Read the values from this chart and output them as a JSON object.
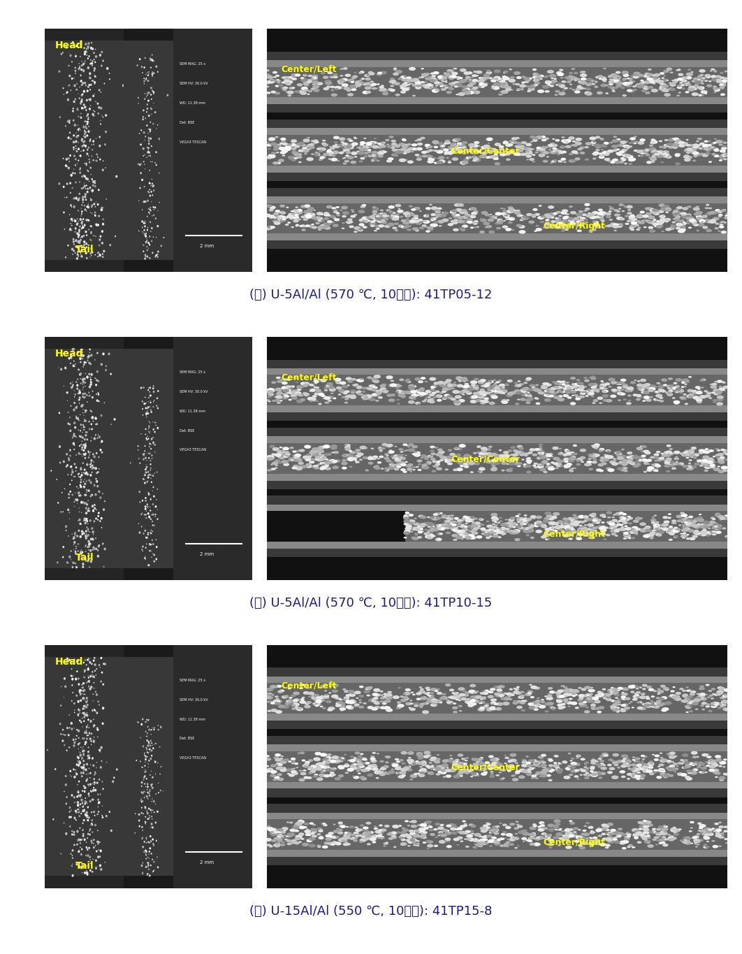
{
  "background_color": "#ffffff",
  "panels": [
    {
      "label_korean": "(가)",
      "label_material": "U-5Al/Al",
      "label_condition": "(570 ℃, 10시간):",
      "label_id": "41TP05-12",
      "left_image_bg": "#2a2a2a",
      "right_image_bg": "#1a1a1a",
      "head_label": "Head",
      "tail_label": "Tail",
      "center_labels": [
        "Center/Left",
        "Center/Center",
        "Center/Right"
      ]
    },
    {
      "label_korean": "(나)",
      "label_material": "U-5Al/Al",
      "label_condition": "(570 ℃, 10시간):",
      "label_id": "41TP10-15",
      "left_image_bg": "#2a2a2a",
      "right_image_bg": "#1a1a1a",
      "head_label": "Head",
      "tail_label": "Tail",
      "center_labels": [
        "Center/Left",
        "Center/Center",
        "Center/Right"
      ]
    },
    {
      "label_korean": "(다)",
      "label_material": "U-15Al/Al",
      "label_condition": "(550 ℃, 10시간):",
      "label_id": "41TP15-8",
      "left_image_bg": "#2a2a2a",
      "right_image_bg": "#1a1a1a",
      "head_label": "Head",
      "tail_label": "Tail",
      "center_labels": [
        "Center/Left",
        "Center/Center",
        "Center/Right"
      ]
    }
  ],
  "caption_fontsize": 13,
  "label_fontsize": 12,
  "yellow_color": "#ffff00",
  "caption_color": "#1a1a8c"
}
